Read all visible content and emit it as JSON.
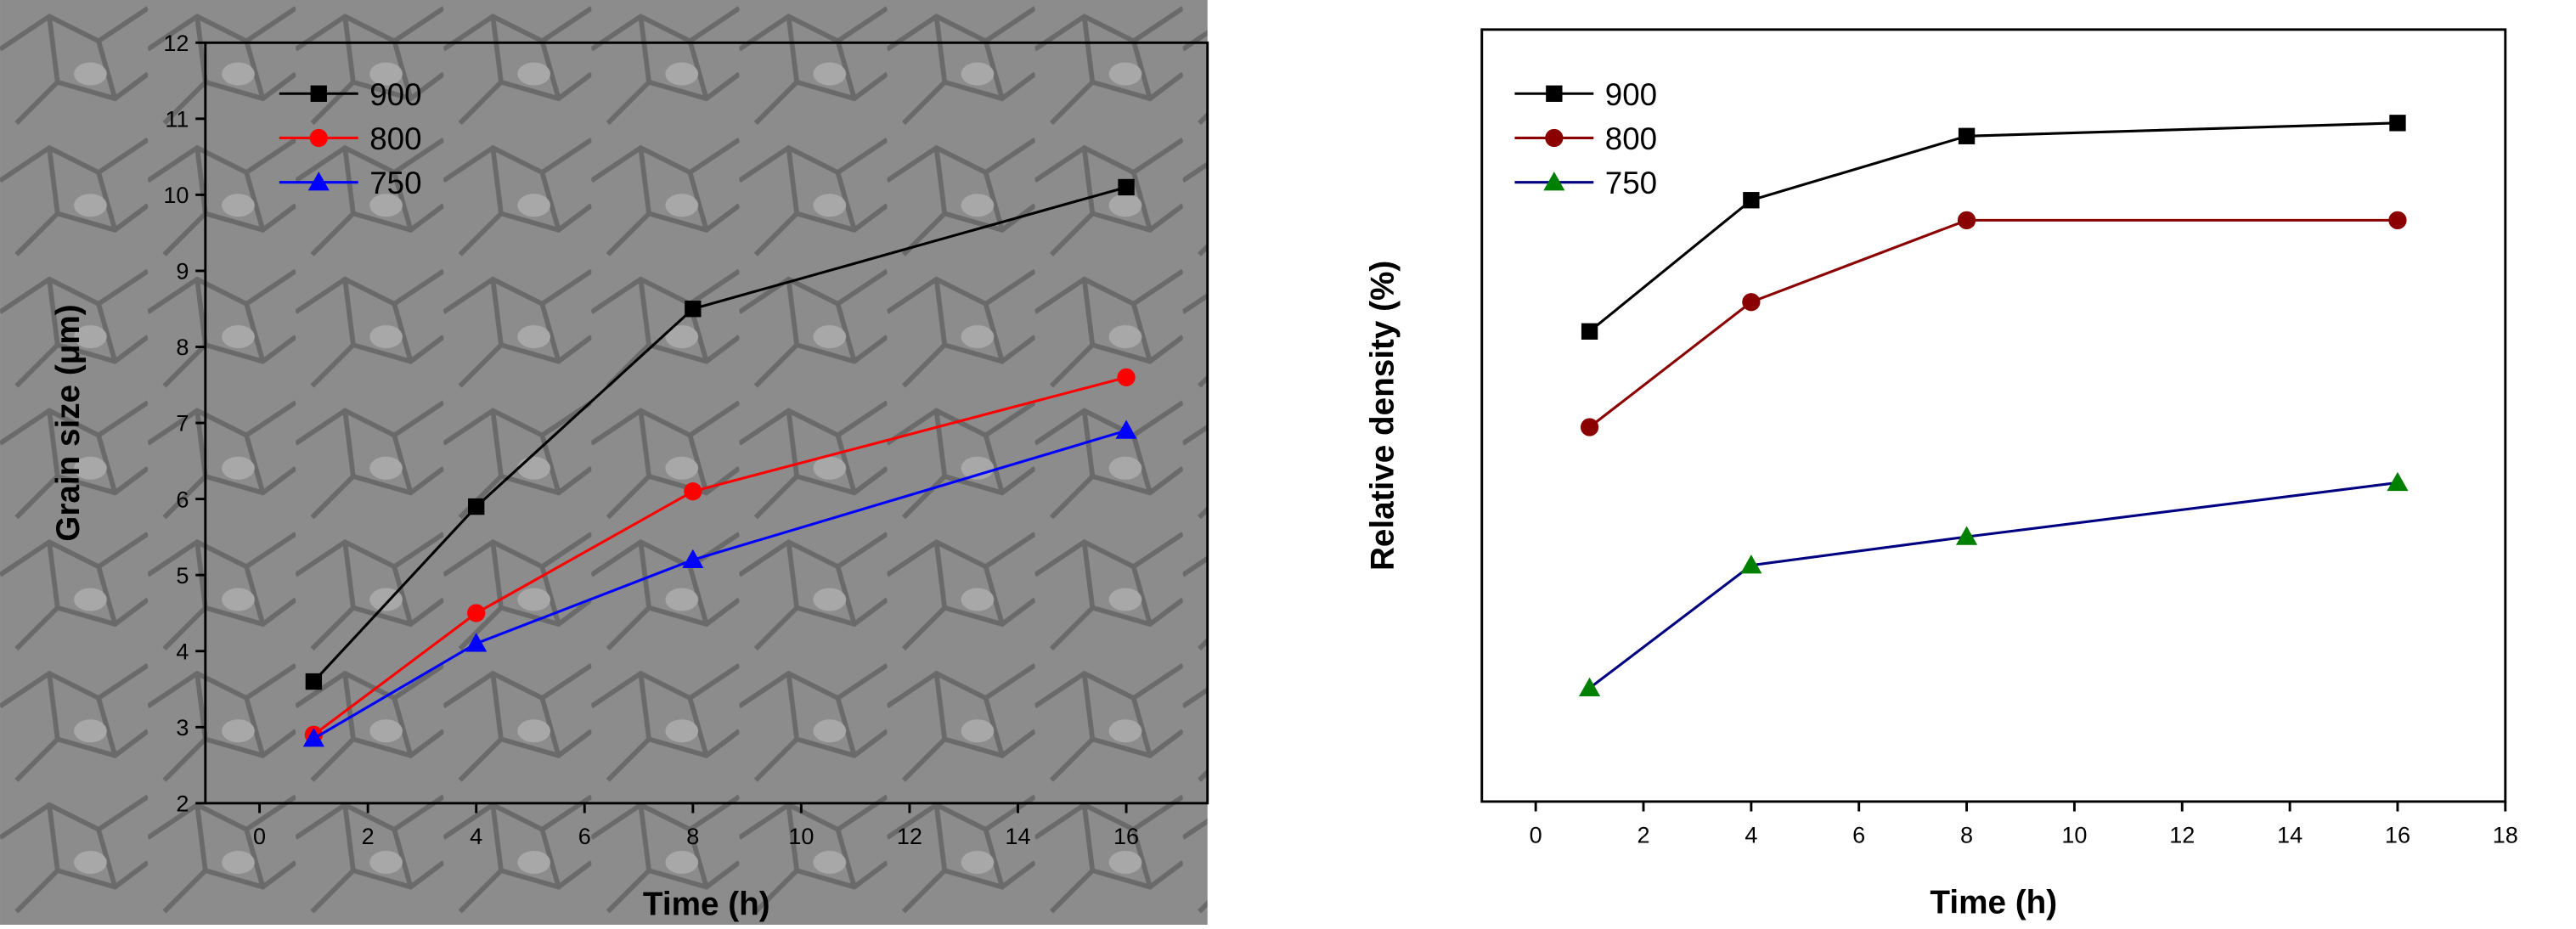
{
  "chart_data": [
    {
      "type": "line",
      "x_label": "Time (h)",
      "y_label": "Grain size (μm)",
      "x": [
        1,
        4,
        8,
        16
      ],
      "xlim": [
        -1,
        17.5
      ],
      "xticks": [
        0,
        2,
        4,
        6,
        8,
        10,
        12,
        14,
        16
      ],
      "ylim": [
        2,
        12
      ],
      "yticks": [
        2,
        3,
        4,
        5,
        6,
        7,
        8,
        9,
        10,
        11,
        12
      ],
      "legend": "upper-left",
      "series": [
        {
          "name": "900",
          "color": "#000000",
          "marker": "square",
          "values": [
            3.6,
            5.9,
            8.5,
            10.1
          ]
        },
        {
          "name": "800",
          "color": "#ff0000",
          "marker": "circle",
          "values": [
            2.9,
            4.5,
            6.1,
            7.6
          ]
        },
        {
          "name": "750",
          "color": "#0000ff",
          "marker": "triangle",
          "values": [
            2.85,
            4.1,
            5.2,
            6.9
          ]
        }
      ]
    },
    {
      "type": "line",
      "x_label": "Time (h)",
      "y_label": "Relative density (%)",
      "x": [
        1,
        4,
        8,
        16
      ],
      "xlim": [
        -1,
        18
      ],
      "xticks": [
        0,
        2,
        4,
        6,
        8,
        10,
        12,
        14,
        16,
        18
      ],
      "ylim": [
        0,
        10
      ],
      "legend": "upper-left",
      "series": [
        {
          "name": "900",
          "color": "#000000",
          "marker": "square",
          "values": [
            6.09,
            7.79,
            8.62,
            8.79
          ]
        },
        {
          "name": "800",
          "color": "#8b0000",
          "marker": "circle",
          "values": [
            4.85,
            6.47,
            7.53,
            7.53
          ]
        },
        {
          "name": "750",
          "color": "#000080",
          "marker_color": "#008000",
          "marker": "triangle",
          "values": [
            1.47,
            3.06,
            3.43,
            4.13
          ]
        }
      ]
    }
  ]
}
